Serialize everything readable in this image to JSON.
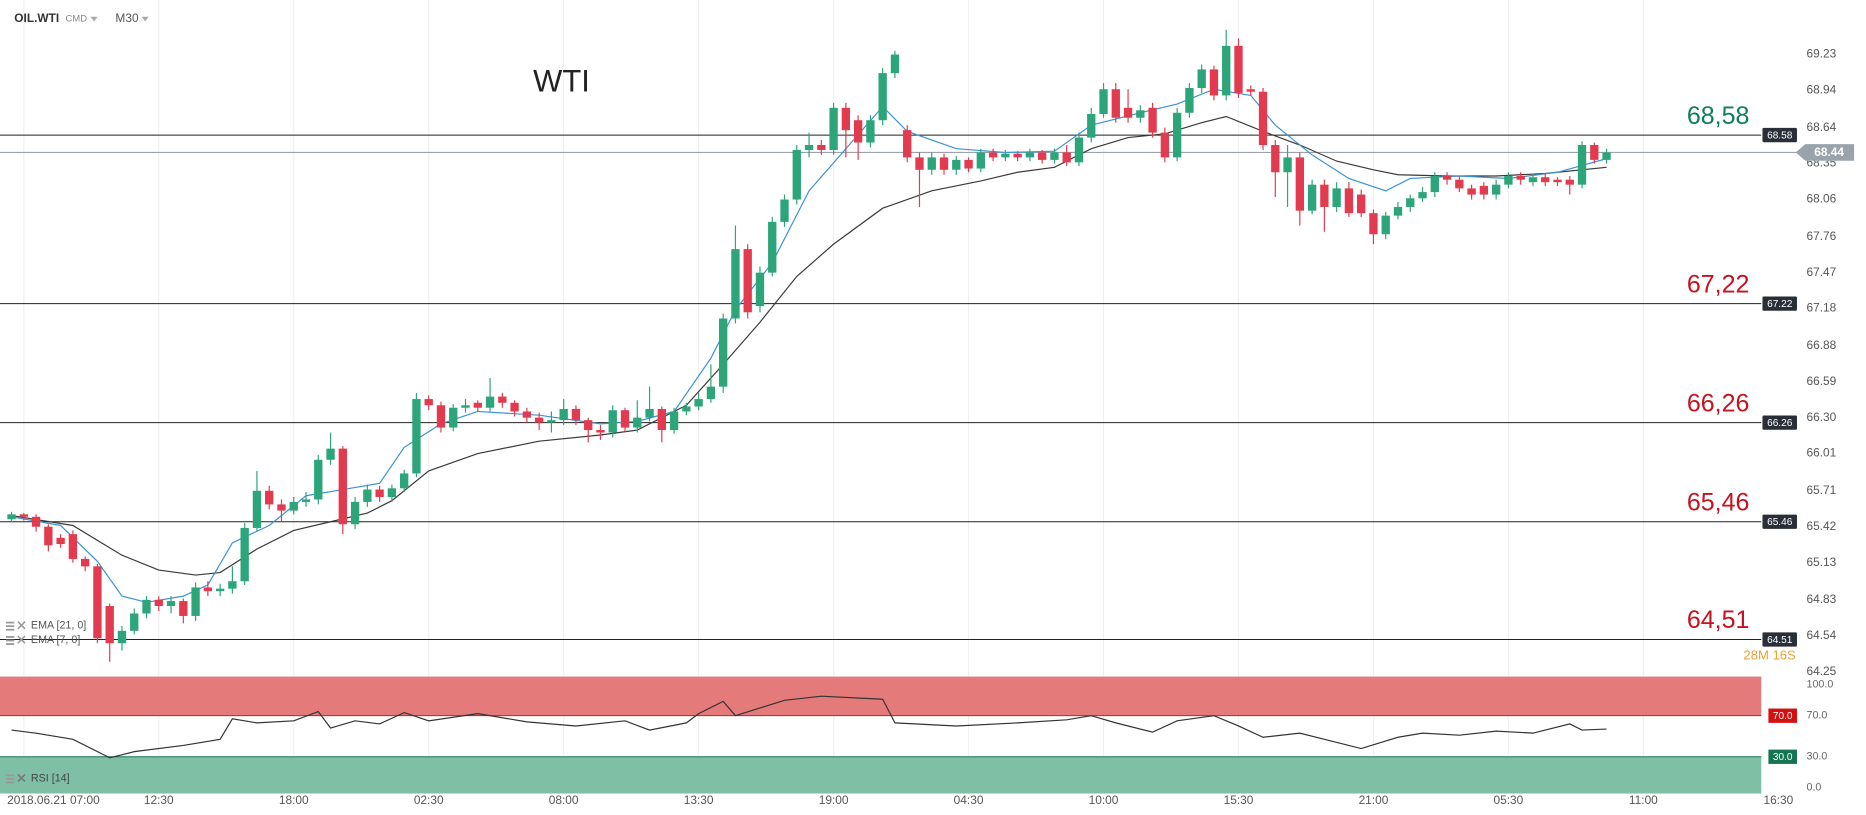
{
  "header": {
    "symbol": "OIL.WTI",
    "market": "CMD",
    "timeframe": "M30"
  },
  "chart_data": [
    {
      "type": "candlestick",
      "title": "WTI",
      "up_color": "#2ca57a",
      "down_color": "#e23a4e",
      "open": [
        65.48,
        65.52,
        65.5,
        65.42,
        65.33,
        65.36,
        65.16,
        65.1,
        64.78,
        64.48,
        64.58,
        64.72,
        64.83,
        64.78,
        64.82,
        64.7,
        64.93,
        64.9,
        64.92,
        64.98,
        65.41,
        65.71,
        65.6,
        65.55,
        65.62,
        65.64,
        65.96,
        66.05,
        65.44,
        65.62,
        65.72,
        65.66,
        65.73,
        65.85,
        66.45,
        66.4,
        66.22,
        66.38,
        66.42,
        66.38,
        66.47,
        66.42,
        66.35,
        66.3,
        66.26,
        66.28,
        66.37,
        66.28,
        66.2,
        66.18,
        66.36,
        66.22,
        66.3,
        66.37,
        66.2,
        66.35,
        66.39,
        66.45,
        66.55,
        67.1,
        67.66,
        67.2,
        67.47,
        67.88,
        68.06,
        68.46,
        68.5,
        68.46,
        68.8,
        68.7,
        68.52,
        68.7,
        69.08,
        68.62,
        68.4,
        68.3,
        68.4,
        68.3,
        68.38,
        68.31,
        68.44,
        68.4,
        68.43,
        68.4,
        68.44,
        68.38,
        68.44,
        68.36,
        68.56,
        68.75,
        68.95,
        68.8,
        68.72,
        68.8,
        68.6,
        68.4,
        68.76,
        68.96,
        69.11,
        68.9,
        69.3,
        68.95,
        68.93,
        68.5,
        68.28,
        68.4,
        67.97,
        68.18,
        68.0,
        68.15,
        68.1,
        67.95,
        67.78,
        67.93,
        68.0,
        68.07,
        68.12,
        68.25,
        68.22,
        68.15,
        68.17,
        68.1,
        68.18,
        68.25,
        68.2,
        68.24,
        68.22,
        68.22,
        68.18,
        68.5,
        68.38
      ],
      "high": [
        65.54,
        65.53,
        65.52,
        65.44,
        65.36,
        65.39,
        65.18,
        65.12,
        64.8,
        64.62,
        64.76,
        64.86,
        64.86,
        64.86,
        64.84,
        64.97,
        64.98,
        64.96,
        65.1,
        65.45,
        65.87,
        65.75,
        65.64,
        65.66,
        65.7,
        66.0,
        66.18,
        66.07,
        65.66,
        65.76,
        65.75,
        65.76,
        65.88,
        66.5,
        66.48,
        66.43,
        66.41,
        66.45,
        66.44,
        66.62,
        66.5,
        66.44,
        66.38,
        66.34,
        66.35,
        66.45,
        66.4,
        66.3,
        66.24,
        66.4,
        66.38,
        66.44,
        66.55,
        66.39,
        66.38,
        66.42,
        66.5,
        66.73,
        67.14,
        67.85,
        67.7,
        67.52,
        67.92,
        68.1,
        68.5,
        68.6,
        68.54,
        68.84,
        68.84,
        68.74,
        68.74,
        69.12,
        69.26,
        68.66,
        68.44,
        68.44,
        68.43,
        68.41,
        68.4,
        68.47,
        68.47,
        68.46,
        68.45,
        68.47,
        68.46,
        68.47,
        68.5,
        68.6,
        68.8,
        69.0,
        69.0,
        68.95,
        68.82,
        68.84,
        68.64,
        68.8,
        69.0,
        69.15,
        69.14,
        69.43,
        69.36,
        68.98,
        68.96,
        68.54,
        68.5,
        68.44,
        68.22,
        68.22,
        68.2,
        68.2,
        68.14,
        67.98,
        67.96,
        68.04,
        68.1,
        68.16,
        68.28,
        68.28,
        68.25,
        68.18,
        68.2,
        68.22,
        68.28,
        68.28,
        68.27,
        68.27,
        68.24,
        68.25,
        68.53,
        68.52,
        68.47
      ],
      "low": [
        65.46,
        65.47,
        65.38,
        65.22,
        65.25,
        65.13,
        65.06,
        64.48,
        64.33,
        64.42,
        64.55,
        64.68,
        64.74,
        64.72,
        64.64,
        64.66,
        64.86,
        64.86,
        64.88,
        64.95,
        65.38,
        65.56,
        65.46,
        65.52,
        65.58,
        65.6,
        65.92,
        65.36,
        65.4,
        65.58,
        65.62,
        65.62,
        65.7,
        65.82,
        66.36,
        66.18,
        66.19,
        66.34,
        66.35,
        66.35,
        66.38,
        66.31,
        66.26,
        66.2,
        66.18,
        66.24,
        66.24,
        66.1,
        66.12,
        66.14,
        66.18,
        66.18,
        66.27,
        66.1,
        66.17,
        66.32,
        66.36,
        66.42,
        66.5,
        67.06,
        67.1,
        67.15,
        67.44,
        67.84,
        68.02,
        68.4,
        68.42,
        68.42,
        68.4,
        68.38,
        68.48,
        68.66,
        69.04,
        68.36,
        68.0,
        68.26,
        68.26,
        68.26,
        68.28,
        68.28,
        68.37,
        68.37,
        68.37,
        68.37,
        68.35,
        68.35,
        68.33,
        68.33,
        68.52,
        68.72,
        68.68,
        68.68,
        68.68,
        68.56,
        68.36,
        68.37,
        68.72,
        68.92,
        68.86,
        68.86,
        68.88,
        68.9,
        68.46,
        68.08,
        68.0,
        67.85,
        67.94,
        67.8,
        67.96,
        67.92,
        67.92,
        67.7,
        67.74,
        67.9,
        67.96,
        68.04,
        68.08,
        68.18,
        68.12,
        68.06,
        68.06,
        68.06,
        68.15,
        68.18,
        68.17,
        68.17,
        68.17,
        68.1,
        68.15,
        68.35,
        68.35
      ],
      "close": [
        65.52,
        65.5,
        65.42,
        65.27,
        65.28,
        65.16,
        65.1,
        64.52,
        64.48,
        64.58,
        64.72,
        64.83,
        64.78,
        64.82,
        64.7,
        64.93,
        64.9,
        64.92,
        64.98,
        65.41,
        65.71,
        65.6,
        65.55,
        65.62,
        65.64,
        65.96,
        66.05,
        65.44,
        65.62,
        65.72,
        65.66,
        65.73,
        65.85,
        66.45,
        66.4,
        66.22,
        66.38,
        66.4,
        66.38,
        66.47,
        66.42,
        66.35,
        66.3,
        66.26,
        66.28,
        66.37,
        66.28,
        66.2,
        66.18,
        66.36,
        66.22,
        66.3,
        66.37,
        66.2,
        66.35,
        66.39,
        66.45,
        66.55,
        67.1,
        67.66,
        67.15,
        67.47,
        67.88,
        68.06,
        68.46,
        68.5,
        68.46,
        68.8,
        68.62,
        68.52,
        68.7,
        69.08,
        69.23,
        68.4,
        68.3,
        68.4,
        68.3,
        68.38,
        68.31,
        68.44,
        68.4,
        68.43,
        68.4,
        68.44,
        68.38,
        68.44,
        68.36,
        68.56,
        68.75,
        68.95,
        68.72,
        68.72,
        68.78,
        68.6,
        68.4,
        68.76,
        68.96,
        69.11,
        68.9,
        69.3,
        68.92,
        68.93,
        68.5,
        68.28,
        68.4,
        67.97,
        68.18,
        68.0,
        68.15,
        67.95,
        67.95,
        67.78,
        67.93,
        68.0,
        68.07,
        68.12,
        68.25,
        68.22,
        68.15,
        68.1,
        68.1,
        68.18,
        68.25,
        68.22,
        68.24,
        68.2,
        68.2,
        68.18,
        68.5,
        68.38,
        68.44
      ],
      "series": [
        {
          "name": "EMA [21, 0]",
          "color": "#3a3a3a",
          "x": [
            0,
            5,
            9,
            12,
            15,
            17,
            20,
            23,
            26,
            29,
            31,
            34,
            38,
            43,
            48,
            51,
            55,
            58,
            61,
            64,
            67,
            71,
            75,
            79,
            82,
            85,
            88,
            91,
            94,
            97,
            99,
            102,
            105,
            108,
            111,
            113,
            117,
            121,
            125,
            130
          ],
          "values": [
            65.51,
            65.43,
            65.19,
            65.07,
            65.03,
            65.05,
            65.24,
            65.39,
            65.46,
            65.53,
            65.63,
            65.87,
            66.01,
            66.11,
            66.16,
            66.2,
            66.4,
            66.73,
            67.07,
            67.44,
            67.7,
            67.99,
            68.13,
            68.21,
            68.28,
            68.32,
            68.47,
            68.56,
            68.59,
            68.68,
            68.73,
            68.61,
            68.5,
            68.37,
            68.3,
            68.26,
            68.25,
            68.25,
            68.27,
            68.32
          ]
        },
        {
          "name": "EMA [7, 0]",
          "color": "#3b93d4",
          "x": [
            0,
            4,
            7,
            9,
            11,
            14,
            16,
            18,
            21,
            24,
            27,
            30,
            32,
            35,
            38,
            43,
            48,
            51,
            54,
            57,
            59,
            62,
            65,
            68,
            71,
            73,
            77,
            81,
            85,
            88,
            92,
            95,
            98,
            101,
            103,
            106,
            109,
            112,
            114,
            118,
            122,
            126,
            130
          ],
          "values": [
            65.5,
            65.43,
            65.14,
            64.86,
            64.81,
            64.86,
            64.95,
            65.29,
            65.43,
            65.67,
            65.72,
            65.77,
            66.06,
            66.25,
            66.35,
            66.32,
            66.25,
            66.27,
            66.35,
            66.78,
            67.17,
            67.55,
            68.13,
            68.47,
            68.81,
            68.61,
            68.47,
            68.44,
            68.45,
            68.66,
            68.76,
            68.83,
            68.95,
            68.9,
            68.66,
            68.42,
            68.23,
            68.13,
            68.23,
            68.25,
            68.23,
            68.28,
            68.39
          ]
        }
      ],
      "ylim": [
        64.23,
        69.67
      ],
      "yticks": [
        69.23,
        68.94,
        68.64,
        68.35,
        68.06,
        67.76,
        67.47,
        67.18,
        66.88,
        66.59,
        {
          "value": 66.3,
          "label": "66.30"
        },
        66.01,
        65.71,
        65.42,
        65.13,
        64.83,
        64.54,
        64.25
      ],
      "levels": [
        {
          "value": 68.58,
          "label": "68,58",
          "color": "#0f7d5b"
        },
        {
          "value": 67.22,
          "label": "67,22",
          "color": "#c4121f"
        },
        {
          "value": 66.26,
          "label": "66,26",
          "color": "#c4121f"
        },
        {
          "value": 65.46,
          "label": "65,46",
          "color": "#c4121f"
        },
        {
          "value": 64.51,
          "label": "64,51",
          "color": "#c4121f"
        }
      ],
      "last_price": 68.44,
      "last_price_color": "#9aa3ab",
      "countdown": "28M 16S"
    },
    {
      "type": "line",
      "series": [
        {
          "name": "RSI [14]",
          "color": "#333333",
          "x": [
            0,
            2,
            5,
            8,
            10,
            14,
            17,
            18,
            20,
            23,
            25,
            26,
            28,
            30,
            32,
            34,
            38,
            42,
            46,
            50,
            52,
            55,
            56,
            58,
            59,
            63,
            66,
            71,
            72,
            77,
            82,
            86,
            88,
            90,
            93,
            95,
            98,
            100,
            102,
            105,
            107,
            110,
            113,
            115,
            118,
            121,
            124,
            127,
            128,
            130
          ],
          "values": [
            56,
            53,
            47,
            29,
            35,
            41,
            47,
            67,
            63,
            65,
            74,
            58,
            65,
            62,
            73,
            65,
            72,
            64,
            60,
            65,
            56,
            63,
            72,
            84,
            70,
            85,
            89,
            86,
            63,
            60,
            63,
            66,
            70,
            63,
            54,
            65,
            70,
            60,
            49,
            53,
            47,
            38,
            49,
            53,
            51,
            55,
            53,
            62,
            56,
            57
          ]
        }
      ],
      "ylim": [
        -5.8,
        108.1
      ],
      "yticks": [
        {
          "value": 100,
          "label": "100.0"
        },
        {
          "value": 70,
          "label": "70.0"
        },
        {
          "value": 30,
          "label": "30.0"
        },
        {
          "value": 0,
          "label": "0.0"
        }
      ],
      "overbought": {
        "value": 70,
        "label": "70.0",
        "color": "#d50f0f",
        "zone_color": "#e57a7a"
      },
      "oversold": {
        "value": 30,
        "label": "30.0",
        "color": "#157552",
        "zone_color": "#7fbfa5"
      },
      "xticks": [
        {
          "value": 1,
          "label": "2018.06.21 07:00"
        },
        {
          "value": 12,
          "label": "12:30"
        },
        {
          "value": 23,
          "label": "18:00"
        },
        {
          "value": 34,
          "label": "02:30"
        },
        {
          "value": 45,
          "label": "08:00"
        },
        {
          "value": 56,
          "label": "13:30"
        },
        {
          "value": 67,
          "label": "19:00"
        },
        {
          "value": 78,
          "label": "04:30"
        },
        {
          "value": 89,
          "label": "10:00"
        },
        {
          "value": 100,
          "label": "15:30"
        },
        {
          "value": 111,
          "label": "21:00"
        },
        {
          "value": 122,
          "label": "05:30"
        },
        {
          "value": 133,
          "label": "11:00"
        },
        {
          "value": 144,
          "label": "16:30"
        }
      ],
      "grid": true
    }
  ]
}
